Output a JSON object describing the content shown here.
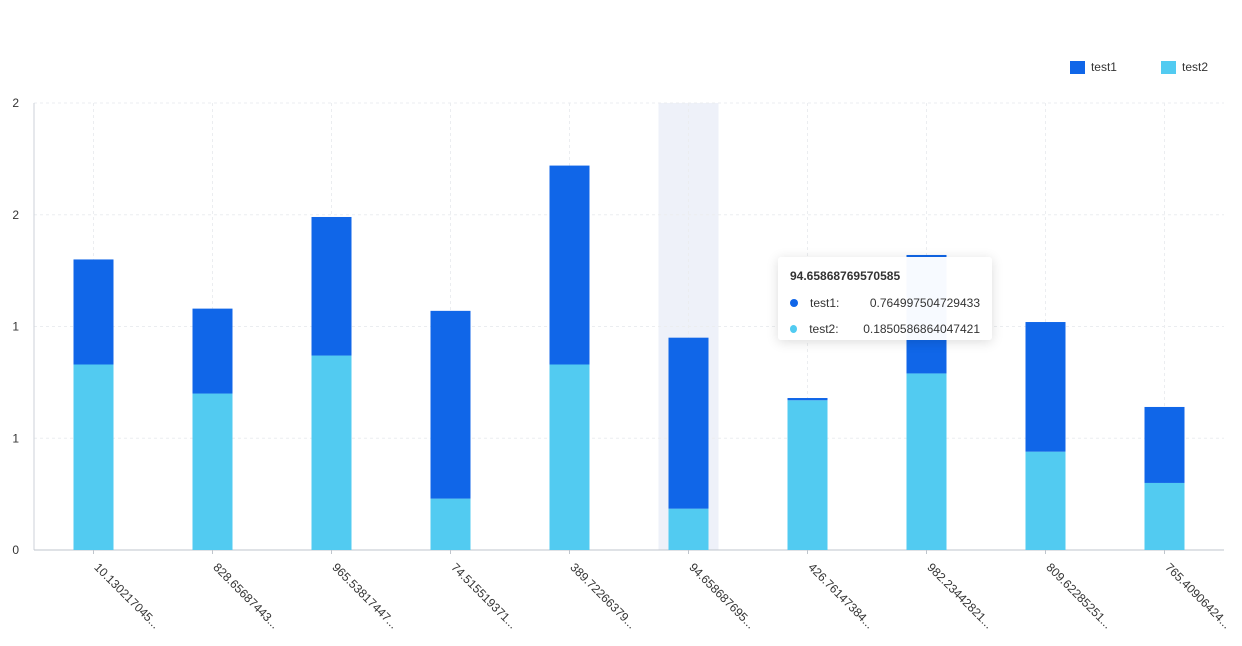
{
  "legend": {
    "items": [
      {
        "label": "test1",
        "color": "#1066E8"
      },
      {
        "label": "test2",
        "color": "#52CBF1"
      }
    ]
  },
  "tooltip": {
    "title": "94.65868769570585",
    "rows": [
      {
        "name": "test1:",
        "value": "0.764997504729433",
        "color": "#1066E8"
      },
      {
        "name": "test2:",
        "value": "0.1850586864047421",
        "color": "#52CBF1"
      }
    ]
  },
  "chart_data": {
    "type": "bar",
    "stacked": true,
    "categories": [
      "10.130217045...",
      "828.65687443...",
      "965.53817447...",
      "74.515519371...",
      "389.72266379...",
      "94.658687695...",
      "426.76147384...",
      "982.23442821...",
      "809.62285251...",
      "765.40906424..."
    ],
    "series": [
      {
        "name": "test2",
        "color": "#52CBF1",
        "values": [
          0.83,
          0.7,
          0.87,
          0.23,
          0.83,
          0.185,
          0.67,
          0.79,
          0.44,
          0.3
        ]
      },
      {
        "name": "test1",
        "color": "#1066E8",
        "values": [
          0.47,
          0.38,
          0.62,
          0.84,
          0.89,
          0.765,
          0.01,
          0.53,
          0.58,
          0.34
        ]
      }
    ],
    "y_tick_labels": [
      "0",
      "1",
      "1",
      "2",
      "2"
    ],
    "ylim": [
      0,
      2
    ],
    "grid": true,
    "highlighted_category": "94.658687695...",
    "legend_position": "top-right"
  }
}
